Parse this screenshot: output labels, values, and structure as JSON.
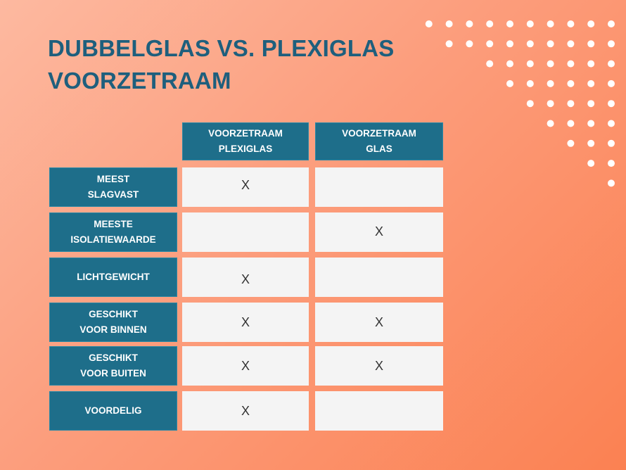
{
  "title": {
    "line1": "DUBBELGLAS VS. PLEXIGLAS",
    "line2": "VOORZETRAAM"
  },
  "colors": {
    "accent": "#1e6e8a",
    "title": "#1e5f7d",
    "cell": "#f4f4f4",
    "dots": "#ffffff"
  },
  "table": {
    "columns": [
      "VOORZETRAAM\nPLEXIGLAS",
      "VOORZETRAAM\nGLAS"
    ],
    "rows": [
      {
        "label": "MEEST\nSLAGVAST",
        "plexiglas": "X",
        "glas": ""
      },
      {
        "label": "MEESTE\nISOLATIEWAARDE",
        "plexiglas": "",
        "glas": "X"
      },
      {
        "label": "LICHTGEWICHT",
        "plexiglas": "X",
        "glas": ""
      },
      {
        "label": "GESCHIKT\nVOOR BINNEN",
        "plexiglas": "X",
        "glas": "X"
      },
      {
        "label": "GESCHIKT\nVOOR BUITEN",
        "plexiglas": "X",
        "glas": "X"
      },
      {
        "label": "VOORDELIG",
        "plexiglas": "X",
        "glas": ""
      }
    ]
  }
}
